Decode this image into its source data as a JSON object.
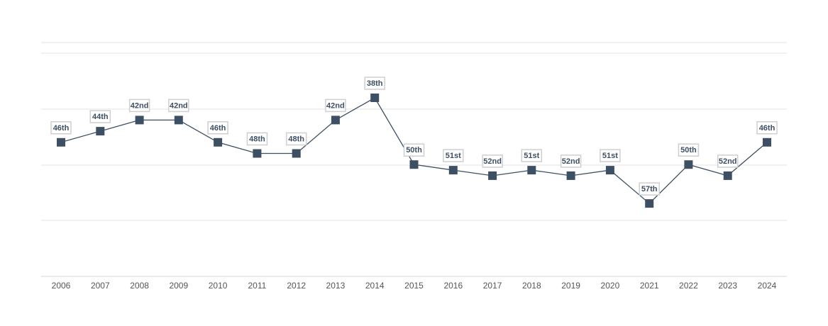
{
  "chart_data": {
    "type": "line",
    "title": "",
    "xlabel": "",
    "ylabel": "",
    "categories": [
      "2006",
      "2007",
      "2008",
      "2009",
      "2010",
      "2011",
      "2012",
      "2013",
      "2014",
      "2015",
      "2016",
      "2017",
      "2018",
      "2019",
      "2020",
      "2021",
      "2022",
      "2023",
      "2024"
    ],
    "series": [
      {
        "values": [
          46,
          44,
          42,
          42,
          46,
          48,
          48,
          42,
          38,
          50,
          51,
          52,
          51,
          52,
          51,
          57,
          50,
          52,
          46
        ],
        "data_labels": [
          "46th",
          "44th",
          "42nd",
          "42nd",
          "46th",
          "48th",
          "48th",
          "42nd",
          "38th",
          "50th",
          "51st",
          "52nd",
          "51st",
          "52nd",
          "51st",
          "57th",
          "50th",
          "52nd",
          "46th"
        ]
      }
    ],
    "y_inverted": true,
    "grid": true,
    "legend": "none",
    "colors": {
      "series": "#3d4f63",
      "grid": "#e3e3e3",
      "label_border": "#cfcfcf",
      "tick": "#555555"
    }
  }
}
